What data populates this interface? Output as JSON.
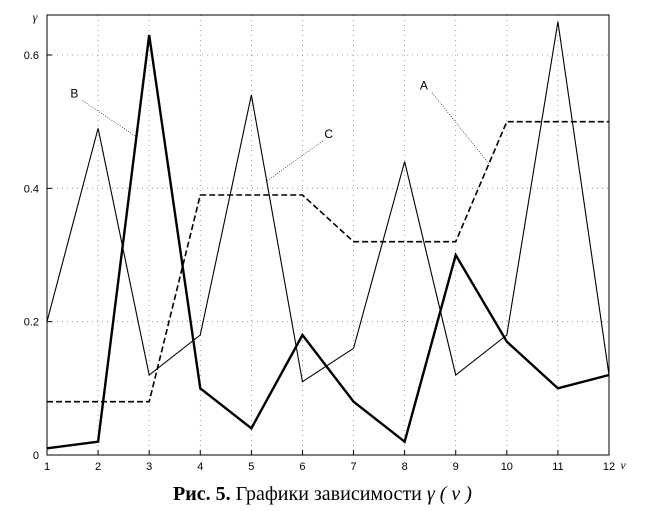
{
  "caption": {
    "prefix": "Рис. 5.",
    "text": "Графики зависимости",
    "symbol": "γ ( ν )"
  },
  "chart_data": {
    "type": "line",
    "xlabel": "ν",
    "ylabel": "γ",
    "xlim": [
      1,
      12
    ],
    "ylim": [
      0,
      0.66
    ],
    "x": [
      1,
      2,
      3,
      4,
      5,
      6,
      7,
      8,
      9,
      10,
      11,
      12
    ],
    "x_ticks": [
      "1",
      "2",
      "3",
      "4",
      "5",
      "6",
      "7",
      "8",
      "9",
      "10",
      "11",
      "12"
    ],
    "y_ticks": [
      0,
      0.2,
      0.4,
      0.6
    ],
    "y_tick_labels": [
      "0",
      "0.2",
      "0.4",
      "0.6"
    ],
    "grid": true,
    "series": [
      {
        "name": "A",
        "style": "dashed",
        "values": [
          0.08,
          0.08,
          0.08,
          0.39,
          0.39,
          0.39,
          0.32,
          0.32,
          0.32,
          0.5,
          0.5,
          0.5
        ],
        "color": "#000000"
      },
      {
        "name": "B",
        "style": "bold",
        "values": [
          0.01,
          0.02,
          0.63,
          0.1,
          0.04,
          0.18,
          0.08,
          0.02,
          0.3,
          0.17,
          0.1,
          0.12
        ],
        "color": "#000000"
      },
      {
        "name": "C",
        "style": "thin",
        "values": [
          0.2,
          0.49,
          0.12,
          0.18,
          0.54,
          0.11,
          0.16,
          0.44,
          0.12,
          0.18,
          0.65,
          0.12
        ],
        "color": "#000000"
      }
    ]
  }
}
